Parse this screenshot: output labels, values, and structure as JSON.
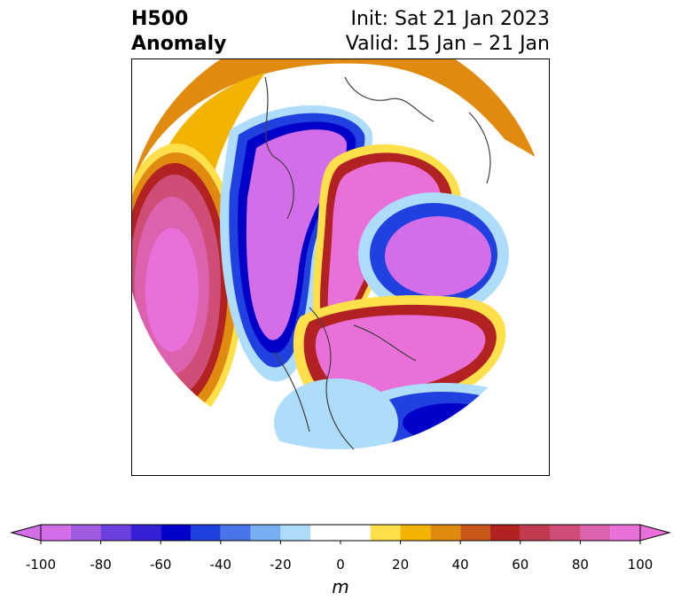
{
  "header": {
    "title_line1": "H500",
    "title_line2": "Anomaly",
    "init_text": "Init: Sat 21 Jan 2023",
    "valid_text": "Valid: 15 Jan – 21 Jan"
  },
  "colorbar": {
    "unit": "m",
    "ticks": [
      "-100",
      "-80",
      "-60",
      "-40",
      "-20",
      "0",
      "20",
      "40",
      "60",
      "80",
      "100"
    ],
    "levels": [
      -100,
      -90,
      -80,
      -70,
      -60,
      -50,
      -40,
      -30,
      -20,
      -10,
      10,
      20,
      30,
      40,
      50,
      60,
      70,
      80,
      90,
      100
    ],
    "colors": [
      "#d36ee8",
      "#a05be0",
      "#6b3fe0",
      "#3520d6",
      "#0000c8",
      "#2040e0",
      "#4a74ea",
      "#76b0f2",
      "#aedcfb",
      "#ffffff",
      "#ffe04a",
      "#f2b400",
      "#e08a10",
      "#c85818",
      "#b22222",
      "#c23a50",
      "#cf4e78",
      "#dc62b0",
      "#e870d8"
    ],
    "extend_min_color": "#d36ee8",
    "extend_max_color": "#e870d8"
  },
  "map": {
    "projection": "north-polar-stereographic",
    "field": "500 hPa geopotential height anomaly",
    "features": [
      {
        "name": "ne-pacific-ridge",
        "sign": "positive",
        "peak_m": 100
      },
      {
        "name": "western-pacific-trough",
        "sign": "negative",
        "peak_m": -100
      },
      {
        "name": "arctic-ridge",
        "sign": "positive",
        "peak_m": 100
      },
      {
        "name": "eurasia-trough",
        "sign": "negative",
        "peak_m": -100
      },
      {
        "name": "north-atlantic-ridge",
        "sign": "positive",
        "peak_m": 100
      },
      {
        "name": "western-us-trough",
        "sign": "negative",
        "peak_m": -40
      },
      {
        "name": "subtropical-atlantic-low",
        "sign": "negative",
        "peak_m": -60
      }
    ]
  }
}
